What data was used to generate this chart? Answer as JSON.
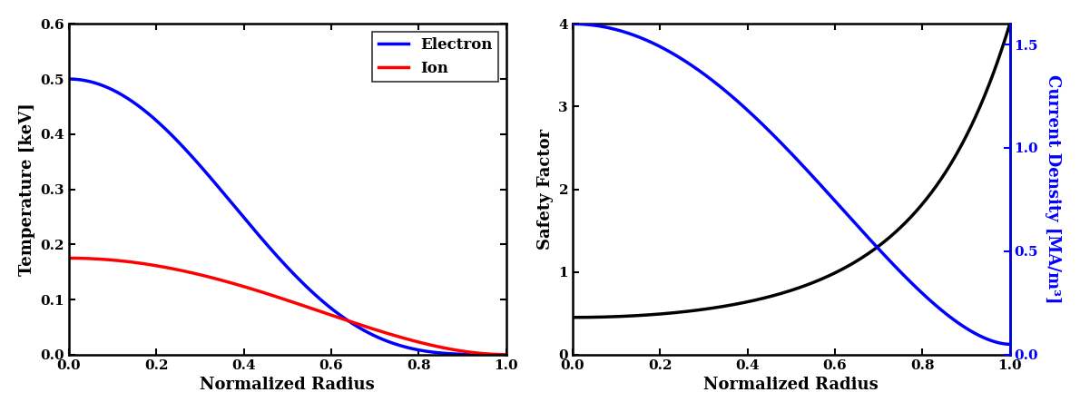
{
  "left_plot": {
    "xlabel": "Normalized Radius",
    "ylabel": "Temperature [keV]",
    "ylim": [
      0,
      0.6
    ],
    "xlim": [
      0,
      1.0
    ],
    "yticks": [
      0.0,
      0.1,
      0.2,
      0.3,
      0.4,
      0.5,
      0.6
    ],
    "xticks": [
      0.0,
      0.2,
      0.4,
      0.6,
      0.8,
      1.0
    ],
    "electron_color": "#0000FF",
    "ion_color": "#FF0000",
    "electron_label": "Electron",
    "ion_label": "Ion",
    "electron_T0": 0.5,
    "ion_T0": 0.175,
    "electron_alpha": 4.0,
    "ion_alpha": 2.0
  },
  "right_plot": {
    "xlabel": "Normalized Radius",
    "ylabel_left": "Safety Factor",
    "ylabel_right": "Current Density [MA/m³]",
    "ylim_left": [
      0,
      4
    ],
    "ylim_right": [
      0.0,
      1.6
    ],
    "xlim": [
      0,
      1.0
    ],
    "yticks_left": [
      0,
      1,
      2,
      3,
      4
    ],
    "yticks_right": [
      0.0,
      0.5,
      1.0,
      1.5
    ],
    "xticks": [
      0.0,
      0.2,
      0.4,
      0.6,
      0.8,
      1.0
    ],
    "safety_color": "#000000",
    "current_color": "#0000FF",
    "safety_q0": 0.45,
    "safety_q1": 4.0,
    "safety_exp_scale": 4.5,
    "current_j0": 1.6,
    "current_j1": 0.05,
    "current_alpha": 1.8
  },
  "linewidth": 2.5,
  "fontsize_label": 13,
  "fontsize_tick": 11,
  "fontsize_legend": 12,
  "figure_facecolor": "#ffffff",
  "font_family": "DejaVu Serif"
}
